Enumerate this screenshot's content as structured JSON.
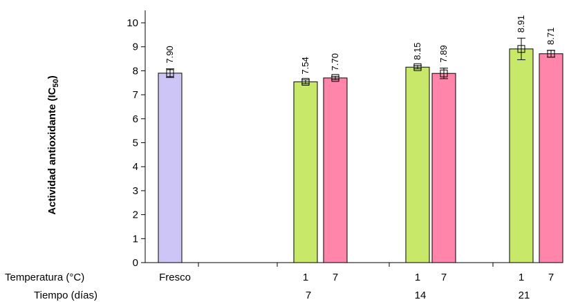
{
  "chart_data": {
    "type": "bar",
    "ylabel": "Actividad antioxidante (IC",
    "ylabel_sub": "50",
    "ylabel_close": ")",
    "ylim": [
      0,
      10
    ],
    "yticks": [
      "0",
      "1",
      "2",
      "3",
      "4",
      "5",
      "6",
      "7",
      "8",
      "9",
      "10"
    ],
    "row_labels": {
      "temperatura": "Temperatura (°C)",
      "tiempo": "Tiempo (días)"
    },
    "groups": [
      {
        "tiempo": "",
        "bars": [
          {
            "temp": "Fresco",
            "value": 7.9,
            "label": "7.90",
            "err": 0.18,
            "color": "#ccc5f5"
          }
        ]
      },
      {
        "tiempo": "7",
        "bars": [
          {
            "temp": "1",
            "value": 7.54,
            "label": "7.54",
            "err": 0.08,
            "color": "#c8e86a"
          },
          {
            "temp": "7",
            "value": 7.7,
            "label": "7.70",
            "err": 0.07,
            "color": "#ff86aa"
          }
        ]
      },
      {
        "tiempo": "14",
        "bars": [
          {
            "temp": "1",
            "value": 8.15,
            "label": "8.15",
            "err": 0.07,
            "color": "#c8e86a"
          },
          {
            "temp": "7",
            "value": 7.89,
            "label": "7.89",
            "err": 0.22,
            "color": "#ff86aa"
          }
        ]
      },
      {
        "tiempo": "21",
        "bars": [
          {
            "temp": "1",
            "value": 8.91,
            "label": "8.91",
            "err": 0.45,
            "color": "#c8e86a"
          },
          {
            "temp": "7",
            "value": 8.71,
            "label": "8.71",
            "err": 0.14,
            "color": "#ff86aa"
          }
        ]
      }
    ]
  }
}
